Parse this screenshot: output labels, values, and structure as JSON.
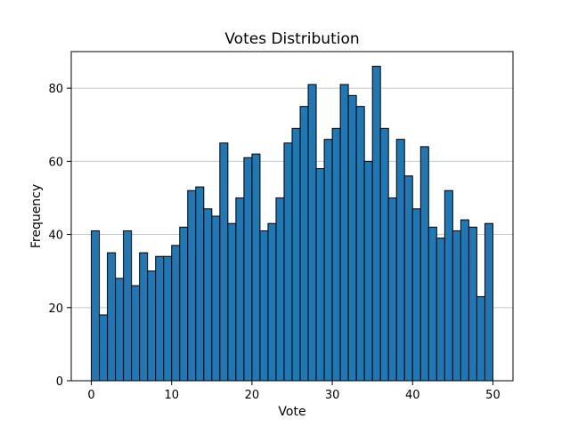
{
  "chart_data": {
    "type": "bar",
    "title": "Votes Distribution",
    "xlabel": "Vote",
    "ylabel": "Frequency",
    "xlim": [
      -2.5,
      52.5
    ],
    "ylim": [
      0,
      90
    ],
    "bin_start": 0,
    "bin_end": 50,
    "x_ticks": [
      0,
      10,
      20,
      30,
      40,
      50
    ],
    "y_ticks": [
      0,
      20,
      40,
      60,
      80
    ],
    "values": [
      41,
      18,
      35,
      28,
      41,
      26,
      35,
      30,
      34,
      34,
      37,
      42,
      52,
      53,
      47,
      45,
      65,
      43,
      50,
      61,
      62,
      41,
      43,
      50,
      65,
      69,
      75,
      81,
      58,
      66,
      69,
      81,
      78,
      75,
      60,
      86,
      69,
      50,
      66,
      56,
      47,
      64,
      42,
      39,
      52,
      41,
      44,
      42,
      23,
      43
    ],
    "bar_color": "#1f77b4",
    "edge_color": "#000000",
    "grid": "y-axis"
  }
}
